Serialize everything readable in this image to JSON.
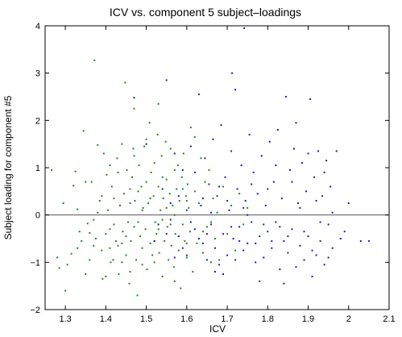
{
  "chart_data": {
    "type": "scatter",
    "title": "ICV vs. component 5 subject–loadings",
    "xlabel": "ICV",
    "ylabel": "Subject loading for component #5",
    "xlim": [
      1.25,
      2.1
    ],
    "ylim": [
      -2,
      4
    ],
    "xticks": [
      "1.3",
      "1.4",
      "1.5",
      "1.6",
      "1.7",
      "1.8",
      "1.9",
      "2",
      "2.1"
    ],
    "yticks": [
      "−2",
      "−1",
      "0",
      "1",
      "2",
      "3",
      "4"
    ],
    "grid": false,
    "reference_line_y": 0,
    "colors": {
      "series_green": "#1a8a1a",
      "series_blue": "#1a1acc",
      "axis": "#000000",
      "zero_line": "#555555"
    },
    "series": [
      {
        "color": "#1a8a1a",
        "points": [
          [
            1.266,
            0.95
          ],
          [
            1.28,
            -0.9
          ],
          [
            1.285,
            -1.12
          ],
          [
            1.295,
            0.25
          ],
          [
            1.3,
            -1.6
          ],
          [
            1.305,
            -1.05
          ],
          [
            1.315,
            -0.82
          ],
          [
            1.32,
            0.62
          ],
          [
            1.325,
            0.92
          ],
          [
            1.33,
            0.12
          ],
          [
            1.335,
            -0.35
          ],
          [
            1.34,
            -0.55
          ],
          [
            1.345,
            1.78
          ],
          [
            1.35,
            0.7
          ],
          [
            1.355,
            -0.18
          ],
          [
            1.36,
            -0.38
          ],
          [
            1.365,
            0.7
          ],
          [
            1.37,
            -0.65
          ],
          [
            1.372,
            3.27
          ],
          [
            1.375,
            -0.5
          ],
          [
            1.38,
            1.48
          ],
          [
            1.385,
            0.3
          ],
          [
            1.39,
            -0.75
          ],
          [
            1.392,
            -1.35
          ],
          [
            1.395,
            1.3
          ],
          [
            1.4,
            -0.4
          ],
          [
            1.402,
            0.85
          ],
          [
            1.405,
            0.1
          ],
          [
            1.41,
            -0.3
          ],
          [
            1.412,
            -1.0
          ],
          [
            1.415,
            0.6
          ],
          [
            1.418,
            -0.95
          ],
          [
            1.42,
            0.35
          ],
          [
            1.425,
            -0.55
          ],
          [
            1.428,
            1.2
          ],
          [
            1.43,
            -0.65
          ],
          [
            1.432,
            -1.25
          ],
          [
            1.435,
            0.2
          ],
          [
            1.44,
            1.5
          ],
          [
            1.442,
            -0.35
          ],
          [
            1.445,
            0.45
          ],
          [
            1.448,
            2.8
          ],
          [
            1.45,
            -0.85
          ],
          [
            1.452,
            0.95
          ],
          [
            1.455,
            -0.15
          ],
          [
            1.458,
            -1.45
          ],
          [
            1.46,
            0.55
          ],
          [
            1.462,
            -0.55
          ],
          [
            1.465,
            0.8
          ],
          [
            1.468,
            1.4
          ],
          [
            1.47,
            -0.25
          ],
          [
            1.472,
            0.3
          ],
          [
            1.475,
            -0.95
          ],
          [
            1.478,
            -1.7
          ],
          [
            1.48,
            0.5
          ],
          [
            1.482,
            1.05
          ],
          [
            1.485,
            -0.45
          ],
          [
            1.488,
            0.6
          ],
          [
            1.49,
            -0.7
          ],
          [
            1.492,
            0.15
          ],
          [
            1.495,
            1.45
          ],
          [
            1.498,
            -0.3
          ],
          [
            1.5,
            0.7
          ],
          [
            1.502,
            -1.15
          ],
          [
            1.505,
            0.25
          ],
          [
            1.508,
            1.95
          ],
          [
            1.51,
            -0.6
          ],
          [
            1.512,
            0.9
          ],
          [
            1.515,
            -0.85
          ],
          [
            1.518,
            0.4
          ],
          [
            1.52,
            1.1
          ],
          [
            1.522,
            -0.15
          ],
          [
            1.525,
            -0.4
          ],
          [
            1.528,
            1.7
          ],
          [
            1.53,
            0.6
          ],
          [
            1.532,
            -0.8
          ],
          [
            1.535,
            0.1
          ],
          [
            1.538,
            1.25
          ],
          [
            1.54,
            -1.3
          ],
          [
            1.542,
            0.35
          ],
          [
            1.545,
            -0.55
          ],
          [
            1.548,
            1.55
          ],
          [
            1.55,
            0.75
          ],
          [
            1.552,
            -0.25
          ],
          [
            1.555,
            -0.95
          ],
          [
            1.558,
            0.45
          ],
          [
            1.56,
            1.4
          ],
          [
            1.562,
            -0.65
          ],
          [
            1.565,
            0.2
          ],
          [
            1.568,
            -1.1
          ],
          [
            1.57,
            0.95
          ],
          [
            1.572,
            -0.4
          ],
          [
            1.575,
            0.55
          ],
          [
            1.578,
            1.05
          ],
          [
            1.58,
            -0.75
          ],
          [
            1.582,
            0.3
          ],
          [
            1.585,
            -1.55
          ],
          [
            1.588,
            0.8
          ],
          [
            1.59,
            -0.2
          ],
          [
            1.592,
            1.3
          ],
          [
            1.595,
            -0.55
          ],
          [
            1.598,
            0.4
          ],
          [
            1.6,
            -0.9
          ],
          [
            1.602,
            0.65
          ],
          [
            1.605,
            0.15
          ],
          [
            1.608,
            -0.35
          ],
          [
            1.61,
            1.85
          ],
          [
            1.615,
            -1.2
          ],
          [
            1.62,
            0.5
          ],
          [
            1.625,
            -0.6
          ],
          [
            1.63,
            0.25
          ],
          [
            1.635,
            1.2
          ],
          [
            1.64,
            -0.8
          ],
          [
            1.645,
            0.7
          ],
          [
            1.65,
            -0.25
          ],
          [
            1.655,
            0.95
          ],
          [
            1.66,
            -1.0
          ],
          [
            1.665,
            0.35
          ],
          [
            1.67,
            -0.5
          ],
          [
            1.675,
            0.05
          ],
          [
            1.68,
            -0.95
          ],
          [
            1.69,
            0.6
          ],
          [
            1.7,
            -0.4
          ],
          [
            1.71,
            0.2
          ],
          [
            1.72,
            -0.75
          ],
          [
            1.73,
            0.45
          ],
          [
            1.74,
            -0.2
          ],
          [
            1.75,
            0.15
          ],
          [
            1.37,
            -0.1
          ],
          [
            1.41,
            -0.7
          ],
          [
            1.43,
            0.9
          ],
          [
            1.45,
            -0.45
          ],
          [
            1.47,
            1.25
          ],
          [
            1.49,
            -1.05
          ],
          [
            1.51,
            0.35
          ],
          [
            1.53,
            -0.3
          ],
          [
            1.55,
            0.15
          ],
          [
            1.57,
            -1.4
          ],
          [
            1.59,
            0.55
          ],
          [
            1.39,
            0.4
          ],
          [
            1.42,
            -0.2
          ],
          [
            1.46,
            -1.2
          ],
          [
            1.5,
            1.6
          ],
          [
            1.54,
            -0.1
          ],
          [
            1.58,
            -0.45
          ],
          [
            1.36,
            -0.95
          ],
          [
            1.4,
            -1.3
          ],
          [
            1.44,
            -0.6
          ],
          [
            1.48,
            -0.15
          ],
          [
            1.52,
            -1.0
          ],
          [
            1.56,
            -0.2
          ],
          [
            1.6,
            0.3
          ],
          [
            1.64,
            -0.35
          ],
          [
            1.33,
            -0.7
          ],
          [
            1.38,
            0.05
          ],
          [
            1.35,
            -1.25
          ],
          [
            1.47,
            2.25
          ],
          [
            1.53,
            2.35
          ],
          [
            1.62,
            1.65
          ],
          [
            1.41,
            1.05
          ],
          [
            1.49,
            0.1
          ],
          [
            1.57,
            0.0
          ],
          [
            1.66,
            -0.15
          ],
          [
            1.52,
            -0.55
          ],
          [
            1.44,
            -1.0
          ],
          [
            1.6,
            -0.6
          ],
          [
            1.54,
            0.8
          ],
          [
            1.46,
            0.25
          ]
        ]
      },
      {
        "color": "#1a1acc",
        "points": [
          [
            1.47,
            2.48
          ],
          [
            1.5,
            1.5
          ],
          [
            1.52,
            -0.55
          ],
          [
            1.54,
            0.55
          ],
          [
            1.55,
            2.85
          ],
          [
            1.56,
            -0.1
          ],
          [
            1.57,
            1.3
          ],
          [
            1.58,
            -0.45
          ],
          [
            1.59,
            0.95
          ],
          [
            1.6,
            -0.85
          ],
          [
            1.61,
            1.45
          ],
          [
            1.62,
            -0.3
          ],
          [
            1.63,
            2.55
          ],
          [
            1.635,
            0.2
          ],
          [
            1.64,
            -0.6
          ],
          [
            1.645,
            1.2
          ],
          [
            1.65,
            -0.95
          ],
          [
            1.655,
            0.65
          ],
          [
            1.66,
            -0.2
          ],
          [
            1.665,
            1.6
          ],
          [
            1.67,
            -0.7
          ],
          [
            1.675,
            0.4
          ],
          [
            1.68,
            -1.05
          ],
          [
            1.685,
            1.9
          ],
          [
            1.69,
            -0.4
          ],
          [
            1.695,
            0.8
          ],
          [
            1.7,
            -0.85
          ],
          [
            1.705,
            0.1
          ],
          [
            1.71,
            1.35
          ],
          [
            1.712,
            3.0
          ],
          [
            1.715,
            -0.5
          ],
          [
            1.72,
            2.65
          ],
          [
            1.725,
            0.55
          ],
          [
            1.73,
            -0.25
          ],
          [
            1.735,
            1.05
          ],
          [
            1.74,
            -0.75
          ],
          [
            1.742,
            3.95
          ],
          [
            1.745,
            0.3
          ],
          [
            1.75,
            -0.6
          ],
          [
            1.755,
            1.7
          ],
          [
            1.76,
            -0.15
          ],
          [
            1.765,
            0.9
          ],
          [
            1.77,
            -1.0
          ],
          [
            1.775,
            0.45
          ],
          [
            1.78,
            -0.45
          ],
          [
            1.785,
            1.25
          ],
          [
            1.79,
            -0.9
          ],
          [
            1.795,
            0.2
          ],
          [
            1.8,
            -0.35
          ],
          [
            1.805,
            1.55
          ],
          [
            1.81,
            -0.7
          ],
          [
            1.815,
            0.7
          ],
          [
            1.82,
            -0.15
          ],
          [
            1.825,
            1.8
          ],
          [
            1.83,
            -1.15
          ],
          [
            1.835,
            0.35
          ],
          [
            1.84,
            -0.55
          ],
          [
            1.845,
            2.5
          ],
          [
            1.85,
            -0.8
          ],
          [
            1.855,
            0.95
          ],
          [
            1.86,
            -0.3
          ],
          [
            1.865,
            1.4
          ],
          [
            1.87,
            -1.1
          ],
          [
            1.875,
            0.25
          ],
          [
            1.88,
            -0.65
          ],
          [
            1.885,
            1.1
          ],
          [
            1.89,
            -0.95
          ],
          [
            1.895,
            0.5
          ],
          [
            1.9,
            -0.45
          ],
          [
            1.905,
            2.45
          ],
          [
            1.91,
            -1.3
          ],
          [
            1.915,
            0.8
          ],
          [
            1.92,
            -0.85
          ],
          [
            1.925,
            1.35
          ],
          [
            1.93,
            -0.55
          ],
          [
            1.935,
            0.4
          ],
          [
            1.94,
            -1.05
          ],
          [
            1.945,
            1.15
          ],
          [
            1.95,
            -0.2
          ],
          [
            1.955,
            0.6
          ],
          [
            1.96,
            -0.7
          ],
          [
            1.97,
            1.35
          ],
          [
            1.98,
            -0.5
          ],
          [
            2.0,
            0.25
          ],
          [
            2.03,
            -0.55
          ],
          [
            2.05,
            -0.55
          ],
          [
            1.53,
            -0.2
          ],
          [
            1.56,
            0.25
          ],
          [
            1.59,
            -0.7
          ],
          [
            1.62,
            0.9
          ],
          [
            1.65,
            -0.4
          ],
          [
            1.68,
            0.6
          ],
          [
            1.71,
            -0.25
          ],
          [
            1.74,
            0.15
          ],
          [
            1.77,
            -0.6
          ],
          [
            1.8,
            0.55
          ],
          [
            1.83,
            -0.25
          ],
          [
            1.86,
            0.7
          ],
          [
            1.89,
            -0.35
          ],
          [
            1.92,
            0.3
          ],
          [
            1.95,
            -0.9
          ],
          [
            1.58,
            0.4
          ],
          [
            1.61,
            -0.15
          ],
          [
            1.64,
            0.35
          ],
          [
            1.67,
            -1.2
          ],
          [
            1.7,
            0.3
          ],
          [
            1.73,
            -0.55
          ],
          [
            1.76,
            0.65
          ],
          [
            1.79,
            -0.2
          ],
          [
            1.82,
            1.05
          ],
          [
            1.85,
            -0.45
          ],
          [
            1.88,
            0.15
          ],
          [
            1.91,
            -0.75
          ],
          [
            1.94,
            0.9
          ],
          [
            1.55,
            -0.4
          ],
          [
            1.63,
            -0.5
          ],
          [
            1.72,
            -0.95
          ],
          [
            1.81,
            -0.55
          ],
          [
            1.87,
            1.95
          ],
          [
            1.9,
            1.3
          ],
          [
            1.84,
            -1.45
          ],
          [
            1.78,
            -1.4
          ],
          [
            1.69,
            -1.25
          ],
          [
            1.66,
            0.05
          ],
          [
            1.75,
            0.0
          ],
          [
            1.93,
            -0.15
          ],
          [
            1.96,
            0.05
          ],
          [
            1.99,
            -0.35
          ],
          [
            1.57,
            -0.9
          ],
          [
            1.6,
            0.1
          ]
        ]
      }
    ]
  }
}
